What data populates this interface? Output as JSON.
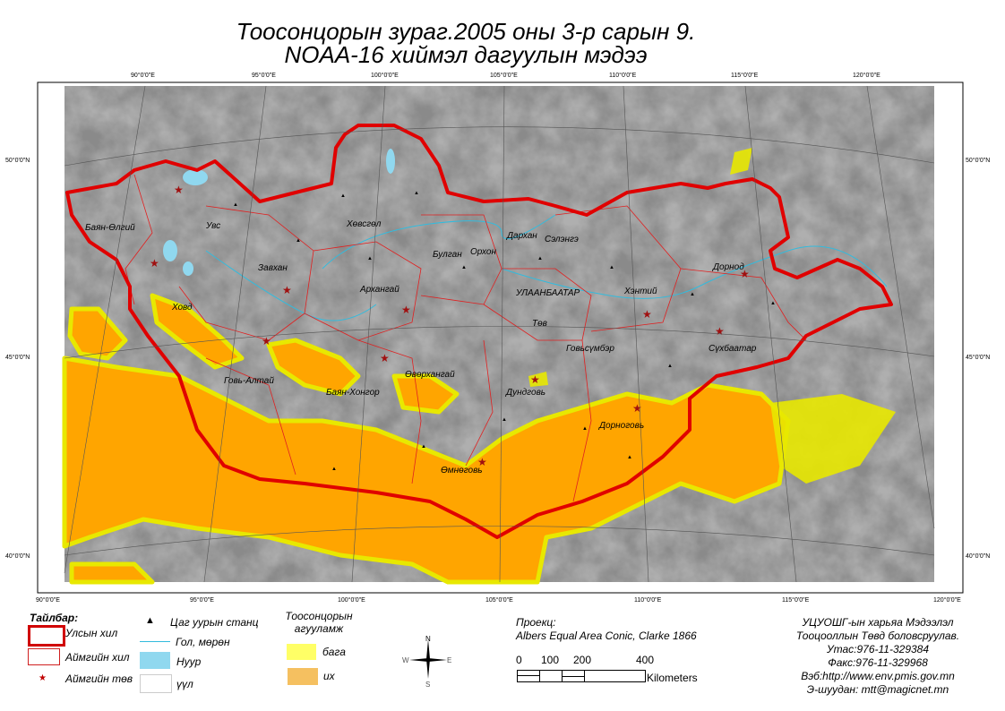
{
  "title": {
    "line1": "Тоосонцорын зураг.2005 оны 3-р сарын 9.",
    "line2": "NOAA-16 хиймэл дагуулын мэдээ"
  },
  "graticule": {
    "top": [
      "90°0'0\"E",
      "95°0'0\"E",
      "100°0'0\"E",
      "105°0'0\"E",
      "110°0'0\"E",
      "115°0'0\"E",
      "120°0'0\"E"
    ],
    "bottom": [
      "90°0'0\"E",
      "95°0'0\"E",
      "100°0'0\"E",
      "105°0'0\"E",
      "110°0'0\"E",
      "115°0'0\"E",
      "120°0'0\"E"
    ],
    "left": [
      "50°0'0\"N",
      "45°0'0\"N",
      "40°0'0\"N"
    ],
    "right": [
      "50°0'0\"N",
      "45°0'0\"N",
      "40°0'0\"N"
    ]
  },
  "aimags": [
    "Баян-Өлгий",
    "Увс",
    "Ховд",
    "Завхан",
    "Хөвсгөл",
    "Архангай",
    "Булган",
    "Орхон",
    "Дархан",
    "Сэлэнгэ",
    "УЛААНБААТАР",
    "Төв",
    "Хэнтий",
    "Дорнод",
    "Сүхбаатар",
    "Говьсүмбэр",
    "Дундговь",
    "Өвөрхангай",
    "Баян-Хонгор",
    "Говь-Алтай",
    "Дорноговь",
    "Өмнөговь"
  ],
  "legend": {
    "heading": "Тайлбар:",
    "national_border": "Улсын хил",
    "aimag_border": "Аймгийн хил",
    "aimag_center": "Аймгийн төв",
    "weather_station": "Цаг уурын станц",
    "river": "Гол, мөрөн",
    "lake": "Нуур",
    "cloud": "үүл",
    "dust_heading": "Тоосонцорын агууламж",
    "dust_low": "бага",
    "dust_high": "их",
    "colors": {
      "national_border": "#e00000",
      "aimag_border": "#e02020",
      "river": "#33bbdd",
      "lake": "#90d8ef",
      "dust_low": "#ffff66",
      "dust_high": "#f5c060"
    }
  },
  "compass": {
    "n": "N",
    "s": "S",
    "e": "E",
    "w": "W"
  },
  "projection": {
    "label": "Проекц:",
    "value": "Albers Equal Area Conic, Clarke 1866"
  },
  "scale": {
    "ticks": [
      "0",
      "100",
      "200",
      "400"
    ],
    "unit": "Kilometers"
  },
  "credits": [
    "УЦУОШГ-ын харьяа Мэдээлэл",
    "Тооцооллын Төвд боловсруулав.",
    "Утас:976-11-329384",
    "Факс:976-11-329968",
    "Вэб:http://www.env.pmis.gov.mn",
    "Э-шуудан: mtt@magicnet.mn"
  ]
}
